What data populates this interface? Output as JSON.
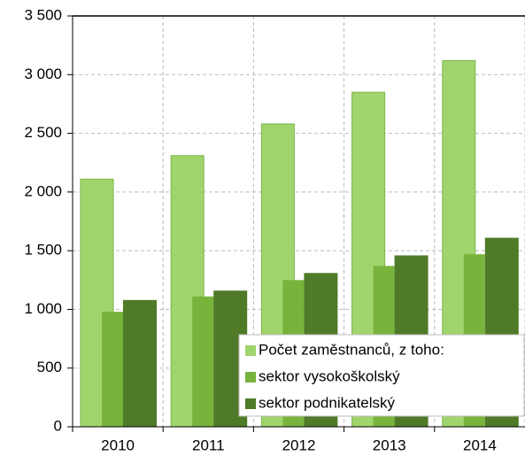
{
  "chart_data": {
    "type": "bar",
    "categories": [
      "2010",
      "2011",
      "2012",
      "2013",
      "2014"
    ],
    "series": [
      {
        "name": "Počet zaměstnanců, z toho:",
        "color": "#a0d46c",
        "values": [
          2110,
          2310,
          2580,
          2850,
          3120
        ]
      },
      {
        "name": "sektor vysokoškolský",
        "color": "#78b43c",
        "values": [
          980,
          1110,
          1250,
          1370,
          1470
        ]
      },
      {
        "name": "sektor podnikatelský",
        "color": "#4f7a28",
        "values": [
          1080,
          1160,
          1310,
          1460,
          1610
        ]
      }
    ],
    "ylim": [
      0,
      3500
    ],
    "yticks": [
      0,
      500,
      {
        "value": 1000,
        "label": "1 000"
      },
      {
        "value": 1500,
        "label": "1 500"
      },
      {
        "value": 2000,
        "label": "2 000"
      },
      {
        "value": 2500,
        "label": "2 500"
      },
      {
        "value": 3000,
        "label": "3 000"
      },
      {
        "value": 3500,
        "label": "3 500"
      }
    ],
    "grid": true,
    "legend": "lower right"
  }
}
